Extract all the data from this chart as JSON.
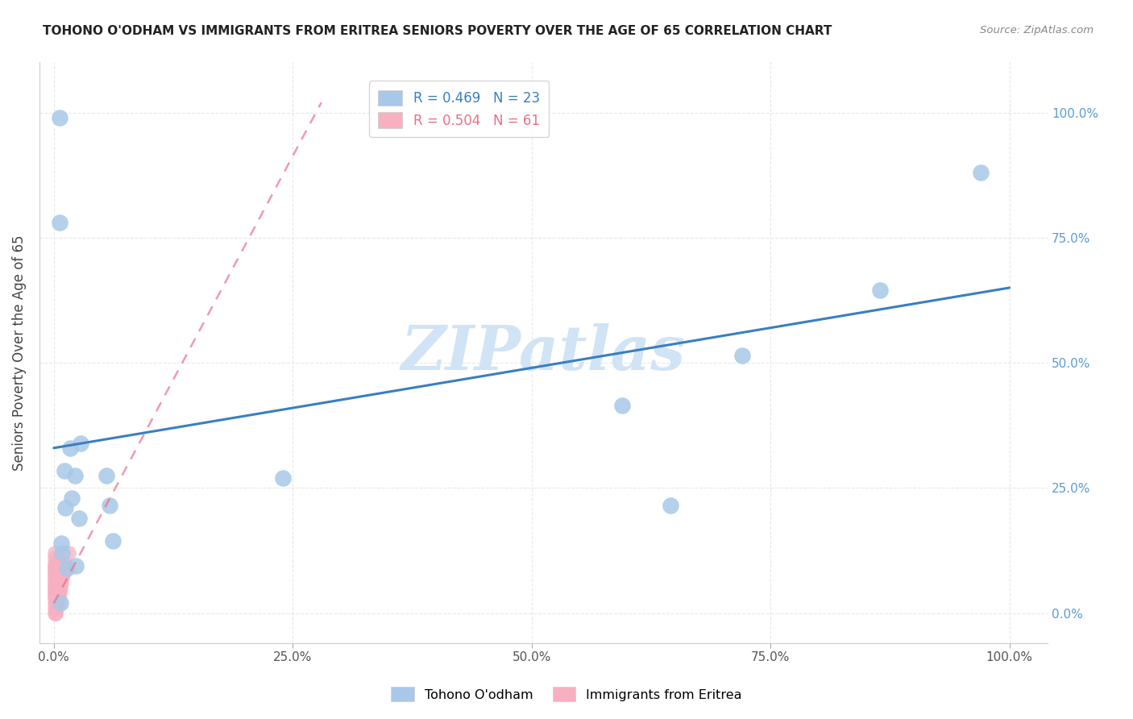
{
  "title": "TOHONO O'ODHAM VS IMMIGRANTS FROM ERITREA SENIORS POVERTY OVER THE AGE OF 65 CORRELATION CHART",
  "source": "Source: ZipAtlas.com",
  "ylabel": "Seniors Poverty Over the Age of 65",
  "legend_label1": "Tohono O'odham",
  "legend_label2": "Immigrants from Eritrea",
  "R1": 0.469,
  "N1": 23,
  "R2": 0.504,
  "N2": 61,
  "color1": "#a8c8e8",
  "color2": "#f8b0c0",
  "line1_color": "#3a7fc1",
  "line2_color": "#e8708a",
  "watermark_color": "#d0e4f5",
  "grid_color": "#e8e8e8",
  "right_tick_color": "#5b9bd5",
  "title_color": "#222222",
  "source_color": "#888888",
  "ylabel_color": "#444444",
  "tohono_x": [
    0.006,
    0.006,
    0.007,
    0.008,
    0.009,
    0.011,
    0.012,
    0.014,
    0.017,
    0.019,
    0.022,
    0.023,
    0.026,
    0.028,
    0.055,
    0.058,
    0.062,
    0.24,
    0.595,
    0.645,
    0.72,
    0.865,
    0.97
  ],
  "tohono_y": [
    0.99,
    0.78,
    0.02,
    0.14,
    0.12,
    0.285,
    0.21,
    0.09,
    0.33,
    0.23,
    0.275,
    0.095,
    0.19,
    0.34,
    0.275,
    0.215,
    0.145,
    0.27,
    0.415,
    0.215,
    0.515,
    0.645,
    0.88
  ],
  "eritrea_x": [
    0.001,
    0.001,
    0.001,
    0.001,
    0.001,
    0.001,
    0.001,
    0.001,
    0.001,
    0.001,
    0.001,
    0.001,
    0.001,
    0.001,
    0.001,
    0.001,
    0.001,
    0.001,
    0.001,
    0.001,
    0.002,
    0.002,
    0.002,
    0.002,
    0.002,
    0.002,
    0.002,
    0.002,
    0.002,
    0.002,
    0.003,
    0.003,
    0.003,
    0.003,
    0.003,
    0.003,
    0.003,
    0.003,
    0.003,
    0.003,
    0.004,
    0.004,
    0.004,
    0.004,
    0.004,
    0.005,
    0.005,
    0.005,
    0.005,
    0.006,
    0.006,
    0.006,
    0.007,
    0.007,
    0.008,
    0.008,
    0.009,
    0.01,
    0.011,
    0.012,
    0.015
  ],
  "eritrea_y": [
    0.0,
    0.01,
    0.02,
    0.03,
    0.035,
    0.04,
    0.045,
    0.05,
    0.055,
    0.06,
    0.065,
    0.07,
    0.075,
    0.08,
    0.085,
    0.09,
    0.095,
    0.1,
    0.11,
    0.12,
    0.0,
    0.01,
    0.02,
    0.03,
    0.035,
    0.04,
    0.045,
    0.05,
    0.055,
    0.06,
    0.01,
    0.02,
    0.03,
    0.04,
    0.05,
    0.06,
    0.07,
    0.08,
    0.09,
    0.1,
    0.02,
    0.04,
    0.06,
    0.08,
    0.1,
    0.03,
    0.05,
    0.07,
    0.09,
    0.04,
    0.06,
    0.08,
    0.05,
    0.07,
    0.06,
    0.08,
    0.07,
    0.08,
    0.09,
    0.1,
    0.12
  ],
  "blue_line_x": [
    0.0,
    1.0
  ],
  "blue_line_y": [
    0.33,
    0.65
  ],
  "pink_line_x": [
    0.0,
    0.28
  ],
  "pink_line_y": [
    0.02,
    1.02
  ],
  "xlim": [
    -0.015,
    1.04
  ],
  "ylim": [
    -0.06,
    1.1
  ],
  "x_ticks": [
    0.0,
    0.25,
    0.5,
    0.75,
    1.0
  ],
  "y_ticks": [
    0.0,
    0.25,
    0.5,
    0.75,
    1.0
  ],
  "x_tick_labels": [
    "0.0%",
    "25.0%",
    "50.0%",
    "75.0%",
    "100.0%"
  ],
  "y_tick_labels": [
    "0.0%",
    "25.0%",
    "50.0%",
    "75.0%",
    "100.0%"
  ]
}
